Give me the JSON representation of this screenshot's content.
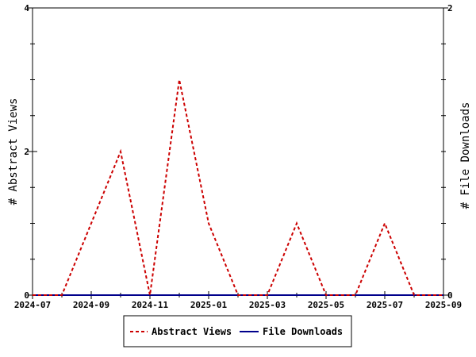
{
  "chart_data": {
    "type": "line",
    "x_ticks": [
      "2024-07",
      "2024-09",
      "2024-11",
      "2025-01",
      "2025-03",
      "2025-05",
      "2025-07",
      "2025-09"
    ],
    "x": [
      "2024-07",
      "2024-08",
      "2024-09",
      "2024-10",
      "2024-11",
      "2024-12",
      "2025-01",
      "2025-02",
      "2025-03",
      "2025-04",
      "2025-05",
      "2025-06",
      "2025-07",
      "2025-08",
      "2025-09"
    ],
    "xlim": [
      "2024-07",
      "2025-09"
    ],
    "series": [
      {
        "name": "Abstract Views",
        "axis": "left",
        "color": "#cc0000",
        "dash": "dashed",
        "values": [
          0,
          0,
          1,
          2,
          0,
          3,
          1,
          0,
          0,
          1,
          0,
          0,
          1,
          0,
          0
        ]
      },
      {
        "name": "File Downloads",
        "axis": "right",
        "color": "#00008b",
        "dash": "solid",
        "values": [
          0,
          0,
          0,
          0,
          0,
          0,
          0,
          0,
          0,
          0,
          0,
          0,
          0,
          0,
          0
        ]
      }
    ],
    "ylabel": "# Abstract Views",
    "ylim": [
      0,
      4
    ],
    "y_ticks": [
      "0",
      "2",
      "4"
    ],
    "y2label": "# File Downloads",
    "y2lim": [
      0,
      2
    ],
    "y2_ticks": [
      "0",
      "2"
    ],
    "legend_position": "bottom",
    "grid": false
  }
}
